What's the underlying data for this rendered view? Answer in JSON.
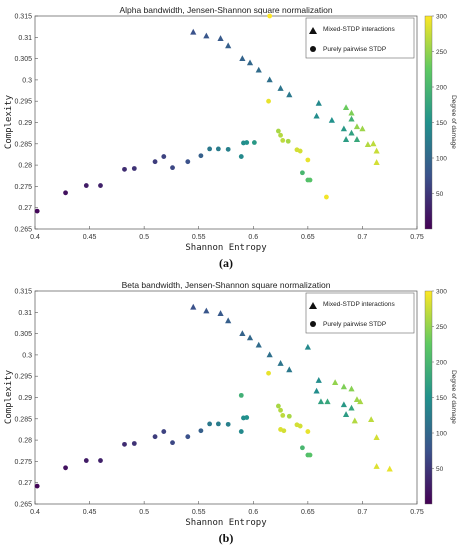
{
  "colormap": [
    "#440154",
    "#3b528b",
    "#21918c",
    "#5ec962",
    "#fde725"
  ],
  "chart_data": [
    {
      "type": "scatter",
      "title": "Alpha bandwidth, Jensen-Shannon square normalization",
      "xlabel": "Shannon Entropy",
      "ylabel": "Complexity",
      "colorbar_label": "Degree of damage",
      "subfig_label": "(a)",
      "xlim": [
        0.4,
        0.75
      ],
      "ylim": [
        0.265,
        0.315
      ],
      "clim": [
        0,
        300
      ],
      "xticks": [
        "0.4",
        "0.45",
        "0.5",
        "0.55",
        "0.6",
        "0.65",
        "0.7",
        "0.75"
      ],
      "yticks": [
        "0.265",
        "0.27",
        "0.275",
        "0.28",
        "0.285",
        "0.29",
        "0.295",
        "0.3",
        "0.305",
        "0.31",
        "0.315"
      ],
      "cticks": [
        "50",
        "100",
        "150",
        "200",
        "250",
        "300"
      ],
      "grid": false,
      "legend_position": "top-right",
      "series": [
        {
          "name": "Mixed-STDP interactions",
          "marker": "triangle",
          "points": [
            [
              0.545,
              0.3112,
              75
            ],
            [
              0.557,
              0.3103,
              80
            ],
            [
              0.57,
              0.3097,
              85
            ],
            [
              0.577,
              0.308,
              90
            ],
            [
              0.59,
              0.305,
              95
            ],
            [
              0.597,
              0.304,
              100
            ],
            [
              0.605,
              0.3023,
              105
            ],
            [
              0.615,
              0.3,
              110
            ],
            [
              0.625,
              0.298,
              115
            ],
            [
              0.633,
              0.2965,
              120
            ],
            [
              0.66,
              0.2945,
              140
            ],
            [
              0.658,
              0.2915,
              145
            ],
            [
              0.672,
              0.2905,
              150
            ],
            [
              0.683,
              0.2885,
              160
            ],
            [
              0.685,
              0.286,
              165
            ],
            [
              0.69,
              0.2875,
              170
            ],
            [
              0.695,
              0.286,
              180
            ],
            [
              0.69,
              0.2908,
              190
            ],
            [
              0.685,
              0.2935,
              230
            ],
            [
              0.69,
              0.2922,
              240
            ],
            [
              0.695,
              0.289,
              250
            ],
            [
              0.7,
              0.2885,
              255
            ],
            [
              0.705,
              0.2848,
              265
            ],
            [
              0.71,
              0.285,
              270
            ],
            [
              0.713,
              0.2833,
              275
            ],
            [
              0.713,
              0.2806,
              280
            ]
          ]
        },
        {
          "name": "Purely pairwise STDP",
          "marker": "circle",
          "points": [
            [
              0.402,
              0.2692,
              5
            ],
            [
              0.428,
              0.2735,
              15
            ],
            [
              0.447,
              0.2752,
              25
            ],
            [
              0.46,
              0.2752,
              30
            ],
            [
              0.482,
              0.279,
              40
            ],
            [
              0.491,
              0.2792,
              45
            ],
            [
              0.51,
              0.2808,
              55
            ],
            [
              0.518,
              0.282,
              60
            ],
            [
              0.526,
              0.2794,
              65
            ],
            [
              0.54,
              0.2808,
              75
            ],
            [
              0.552,
              0.2822,
              90
            ],
            [
              0.56,
              0.2838,
              120
            ],
            [
              0.568,
              0.2838,
              125
            ],
            [
              0.577,
              0.2837,
              130
            ],
            [
              0.589,
              0.282,
              140
            ],
            [
              0.591,
              0.2852,
              145
            ],
            [
              0.594,
              0.2853,
              150
            ],
            [
              0.601,
              0.2853,
              160
            ],
            [
              0.614,
              0.295,
              290
            ],
            [
              0.615,
              0.315,
              300
            ],
            [
              0.623,
              0.288,
              260
            ],
            [
              0.625,
              0.287,
              265
            ],
            [
              0.627,
              0.2858,
              270
            ],
            [
              0.632,
              0.2856,
              260
            ],
            [
              0.64,
              0.2836,
              280
            ],
            [
              0.643,
              0.2833,
              280
            ],
            [
              0.65,
              0.2812,
              290
            ],
            [
              0.645,
              0.2782,
              200
            ],
            [
              0.65,
              0.2765,
              210
            ],
            [
              0.652,
              0.2765,
              215
            ],
            [
              0.667,
              0.2725,
              295
            ]
          ]
        }
      ]
    },
    {
      "type": "scatter",
      "title": "Beta bandwidth, Jensen-Shannon square normalization",
      "xlabel": "Shannon Entropy",
      "ylabel": "Complexity",
      "colorbar_label": "Degree of damage",
      "subfig_label": "(b)",
      "xlim": [
        0.4,
        0.75
      ],
      "ylim": [
        0.265,
        0.315
      ],
      "clim": [
        0,
        300
      ],
      "xticks": [
        "0.4",
        "0.45",
        "0.5",
        "0.55",
        "0.6",
        "0.65",
        "0.7",
        "0.75"
      ],
      "yticks": [
        "0.265",
        "0.27",
        "0.275",
        "0.28",
        "0.285",
        "0.29",
        "0.295",
        "0.3",
        "0.305",
        "0.31",
        "0.315"
      ],
      "cticks": [
        "50",
        "100",
        "150",
        "200",
        "250",
        "300"
      ],
      "grid": false,
      "legend_position": "top-right",
      "series": [
        {
          "name": "Mixed-STDP interactions",
          "marker": "triangle",
          "points": [
            [
              0.545,
              0.3112,
              75
            ],
            [
              0.557,
              0.3103,
              80
            ],
            [
              0.57,
              0.3097,
              85
            ],
            [
              0.577,
              0.308,
              90
            ],
            [
              0.59,
              0.305,
              95
            ],
            [
              0.597,
              0.304,
              100
            ],
            [
              0.605,
              0.3023,
              105
            ],
            [
              0.615,
              0.3,
              110
            ],
            [
              0.625,
              0.298,
              115
            ],
            [
              0.633,
              0.2965,
              120
            ],
            [
              0.65,
              0.3018,
              140
            ],
            [
              0.66,
              0.294,
              145
            ],
            [
              0.658,
              0.2915,
              145
            ],
            [
              0.662,
              0.289,
              170
            ],
            [
              0.668,
              0.289,
              180
            ],
            [
              0.683,
              0.2883,
              160
            ],
            [
              0.685,
              0.286,
              165
            ],
            [
              0.69,
              0.2875,
              175
            ],
            [
              0.675,
              0.2935,
              250
            ],
            [
              0.683,
              0.2925,
              240
            ],
            [
              0.69,
              0.292,
              245
            ],
            [
              0.695,
              0.2895,
              255
            ],
            [
              0.698,
              0.289,
              260
            ],
            [
              0.693,
              0.2845,
              265
            ],
            [
              0.708,
              0.2848,
              270
            ],
            [
              0.713,
              0.2806,
              280
            ],
            [
              0.713,
              0.2738,
              285
            ],
            [
              0.725,
              0.2732,
              290
            ]
          ]
        },
        {
          "name": "Purely pairwise STDP",
          "marker": "circle",
          "points": [
            [
              0.402,
              0.2692,
              5
            ],
            [
              0.428,
              0.2735,
              15
            ],
            [
              0.447,
              0.2752,
              25
            ],
            [
              0.46,
              0.2752,
              30
            ],
            [
              0.482,
              0.279,
              40
            ],
            [
              0.491,
              0.2792,
              45
            ],
            [
              0.51,
              0.2808,
              55
            ],
            [
              0.518,
              0.282,
              60
            ],
            [
              0.526,
              0.2794,
              65
            ],
            [
              0.54,
              0.2808,
              75
            ],
            [
              0.552,
              0.2822,
              90
            ],
            [
              0.56,
              0.2838,
              120
            ],
            [
              0.568,
              0.2838,
              125
            ],
            [
              0.577,
              0.2837,
              130
            ],
            [
              0.589,
              0.282,
              140
            ],
            [
              0.589,
              0.2905,
              190
            ],
            [
              0.591,
              0.2852,
              145
            ],
            [
              0.594,
              0.2853,
              150
            ],
            [
              0.614,
              0.2957,
              290
            ],
            [
              0.623,
              0.288,
              260
            ],
            [
              0.625,
              0.287,
              265
            ],
            [
              0.625,
              0.2825,
              285
            ],
            [
              0.627,
              0.2858,
              270
            ],
            [
              0.628,
              0.2822,
              280
            ],
            [
              0.633,
              0.2856,
              260
            ],
            [
              0.64,
              0.2836,
              280
            ],
            [
              0.643,
              0.2833,
              280
            ],
            [
              0.65,
              0.282,
              290
            ],
            [
              0.645,
              0.2782,
              200
            ],
            [
              0.65,
              0.2765,
              210
            ],
            [
              0.652,
              0.2765,
              215
            ]
          ]
        }
      ]
    }
  ]
}
